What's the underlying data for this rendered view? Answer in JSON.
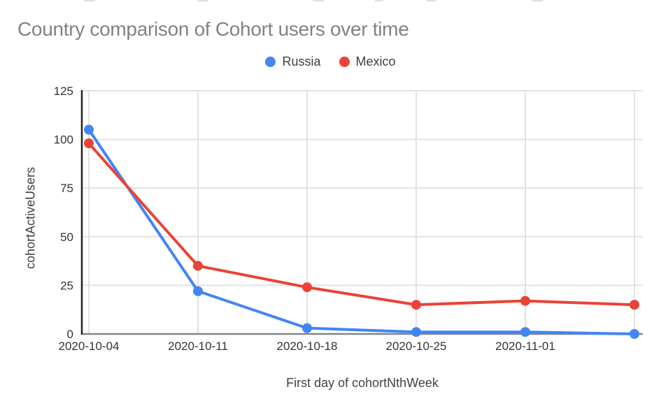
{
  "chart_data": {
    "type": "line",
    "title": "Country comparison of Cohort users over time",
    "xlabel": "First day of cohortNthWeek",
    "ylabel": "cohortActiveUsers",
    "x_tick_labels": [
      "2020-10-04",
      "2020-10-11",
      "2020-10-18",
      "2020-10-25",
      "2020-11-01"
    ],
    "categories": [
      "2020-10-04",
      "2020-10-11",
      "2020-10-18",
      "2020-10-25",
      "2020-11-01",
      ""
    ],
    "series": [
      {
        "name": "Russia",
        "color": "#4285F4",
        "values": [
          105,
          22,
          3,
          1,
          1,
          0
        ]
      },
      {
        "name": "Mexico",
        "color": "#EA4335",
        "values": [
          98,
          35,
          24,
          15,
          17,
          15
        ]
      }
    ],
    "ylim": [
      0,
      125
    ],
    "y_ticks": [
      0,
      25,
      50,
      75,
      100,
      125
    ],
    "grid": true,
    "legend_position": "top-center",
    "marker": "circle",
    "colors": {
      "title_text": "#828282",
      "tick_text": "#333333",
      "axis_title_text": "#424242",
      "legend_text": "#3c4043",
      "gridline": "#e2e2e2",
      "y_axis_line": "#212121",
      "x_axis_line": "#80868b",
      "background": "#ffffff"
    }
  }
}
